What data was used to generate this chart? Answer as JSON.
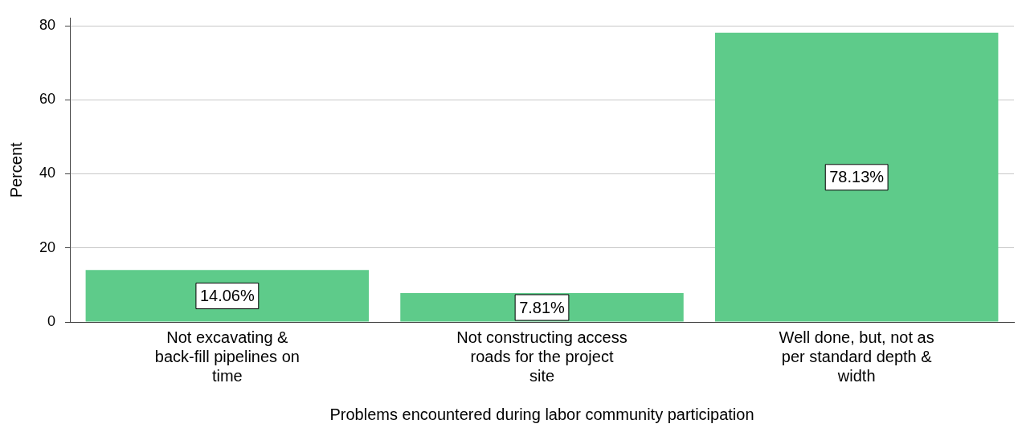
{
  "chart_data": {
    "type": "bar",
    "categories": [
      "Not excavating & back-fill pipelines on time",
      "Not constructing access roads for the project site",
      "Well done, but, not as per standard depth & width"
    ],
    "values": [
      14.06,
      7.81,
      78.13
    ],
    "value_labels": [
      "14.06%",
      "7.81%",
      "78.13%"
    ],
    "color": "#5ecb8a",
    "xlabel": "Problems encountered during labor community participation",
    "ylabel": "Percent",
    "ylim": [
      0,
      82
    ],
    "yticks": [
      0,
      20,
      40,
      60,
      80
    ],
    "grid": "y",
    "legend": false
  }
}
